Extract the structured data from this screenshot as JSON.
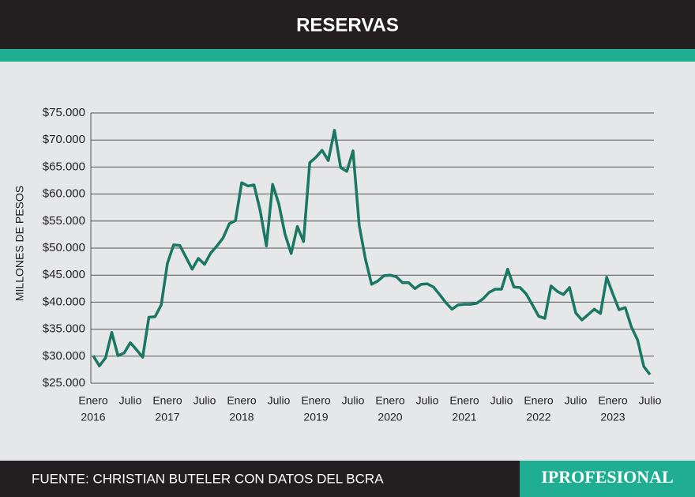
{
  "chart_data": {
    "type": "line",
    "title": "RESERVAS",
    "y_label": "MILLONES DE PESOS",
    "source": "FUENTE: CHRISTIAN BUTELER CON DATOS DEL BCRA",
    "logo": "IPROFESIONAL",
    "categories": [
      "Enero",
      null,
      null,
      null,
      null,
      null,
      "Julio",
      null,
      null,
      null,
      null,
      null,
      "Enero",
      null,
      null,
      null,
      null,
      null,
      "Julio",
      null,
      null,
      null,
      null,
      null,
      "Enero",
      null,
      null,
      null,
      null,
      null,
      "Julio",
      null,
      null,
      null,
      null,
      null,
      "Enero",
      null,
      null,
      null,
      null,
      null,
      "Julio",
      null,
      null,
      null,
      null,
      null,
      "Enero",
      null,
      null,
      null,
      null,
      null,
      "Julio",
      null,
      null,
      null,
      null,
      null,
      "Enero",
      null,
      null,
      null,
      null,
      null,
      "Julio",
      null,
      null,
      null,
      null,
      null,
      "Enero",
      null,
      null,
      null,
      null,
      null,
      "Julio",
      null,
      null,
      null,
      null,
      null,
      "Enero",
      null,
      null,
      null,
      null,
      null,
      "Julio"
    ],
    "year_labels": [
      "2016",
      "2017",
      "2018",
      "2019",
      "2020",
      "2021",
      "2022",
      "2023"
    ],
    "series": [
      {
        "color": "#1a7761",
        "values": [
          30100,
          28200,
          29700,
          34400,
          30100,
          30600,
          32500,
          31200,
          29800,
          37200,
          37300,
          39500,
          47200,
          50600,
          50500,
          48300,
          46100,
          48100,
          47000,
          49100,
          50400,
          51900,
          54500,
          55100,
          62100,
          61500,
          61700,
          56900,
          50400,
          61800,
          58200,
          52600,
          49000,
          54000,
          51200,
          65800,
          66800,
          68100,
          66200,
          71800,
          64900,
          64200,
          68000,
          54200,
          48000,
          43300,
          43900,
          44900,
          45000,
          44700,
          43600,
          43600,
          42500,
          43300,
          43400,
          42800,
          41400,
          39900,
          38700,
          39500,
          39600,
          39600,
          39800,
          40600,
          41800,
          42400,
          42400,
          46100,
          42800,
          42700,
          41500,
          39500,
          37400,
          37000,
          43000,
          42000,
          41400,
          42700,
          38000,
          36700,
          37700,
          38700,
          37900,
          44600,
          41500,
          38600,
          39000,
          35400,
          33000,
          28100,
          26600
        ]
      }
    ],
    "ylim": [
      25000,
      75000
    ],
    "yticks": [
      {
        "value": 25000,
        "label": "$25.000"
      },
      {
        "value": 30000,
        "label": "$30.000"
      },
      {
        "value": 35000,
        "label": "$35.000"
      },
      {
        "value": 40000,
        "label": "$40.000"
      },
      {
        "value": 45000,
        "label": "$45.000"
      },
      {
        "value": 50000,
        "label": "$50.000"
      },
      {
        "value": 55000,
        "label": "$55.000"
      },
      {
        "value": 60000,
        "label": "$60.000"
      },
      {
        "value": 65000,
        "label": "$65.000"
      },
      {
        "value": 70000,
        "label": "$70.000"
      },
      {
        "value": 75000,
        "label": "$75.000"
      }
    ],
    "grid": true
  }
}
